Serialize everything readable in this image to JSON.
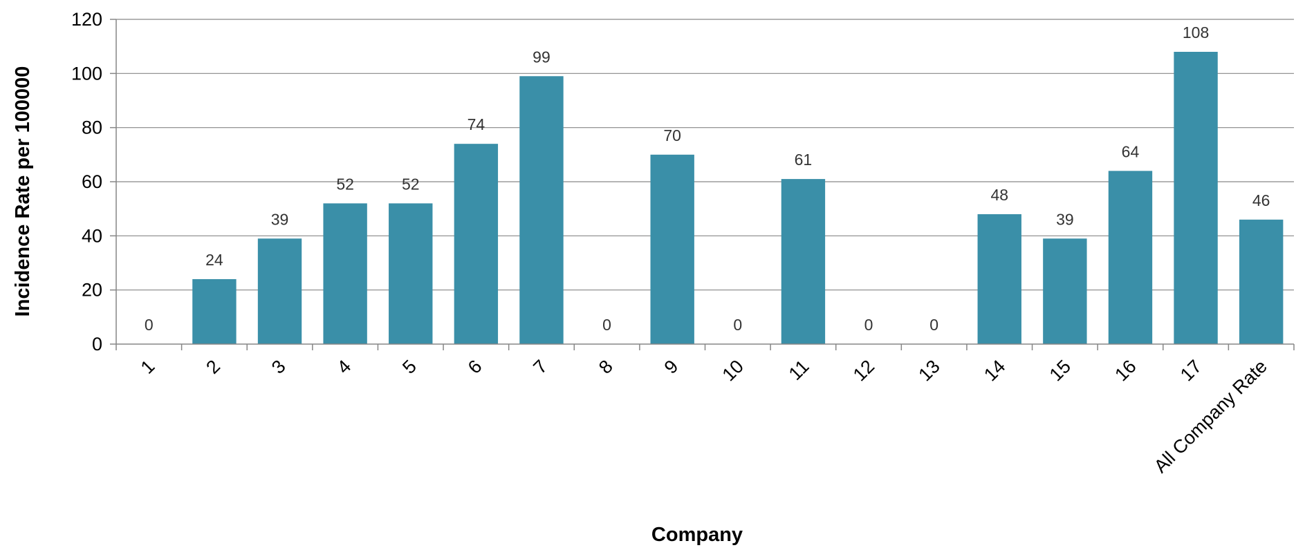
{
  "chart_data": {
    "type": "bar",
    "title": "",
    "xlabel": "Company",
    "ylabel": "Incidence Rate per 100000",
    "categories": [
      "1",
      "2",
      "3",
      "4",
      "5",
      "6",
      "7",
      "8",
      "9",
      "10",
      "11",
      "12",
      "13",
      "14",
      "15",
      "16",
      "17",
      "All Company Rate"
    ],
    "values": [
      0,
      24,
      39,
      52,
      52,
      74,
      99,
      0,
      70,
      0,
      61,
      0,
      0,
      48,
      39,
      64,
      108,
      46
    ],
    "data_labels": [
      "0",
      "24",
      "39",
      "52",
      "52",
      "74",
      "99",
      "0",
      "70",
      "0",
      "61",
      "0",
      "0",
      "48",
      "39",
      "64",
      "108",
      "46"
    ],
    "ylim": [
      0,
      120
    ],
    "yticks": [
      0,
      20,
      40,
      60,
      80,
      100,
      120
    ],
    "grid": true,
    "legend": "none",
    "bar_color": "#3A8FA8"
  }
}
